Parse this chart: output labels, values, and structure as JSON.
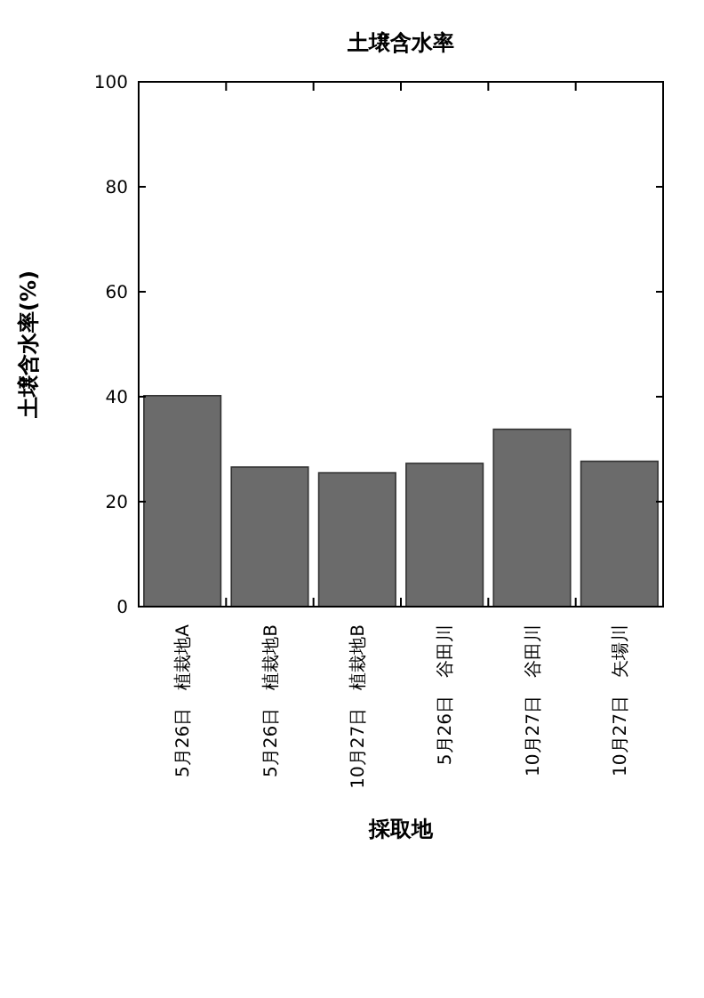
{
  "chart_data": {
    "type": "bar",
    "title": "土壌含水率",
    "xlabel": "採取地",
    "ylabel": "土壌含水率(%)",
    "categories": [
      "5月26日　植栽地A",
      "5月26日　植栽地B",
      "10月27日　植栽地B",
      "5月26日　谷田川",
      "10月27日　谷田川",
      "10月27日　矢場川"
    ],
    "values": [
      40.2,
      26.6,
      25.5,
      27.3,
      33.8,
      27.7
    ],
    "color": "#6b6b6b",
    "ylim": [
      0,
      100
    ],
    "yticks": [
      0,
      20,
      40,
      60,
      80,
      100
    ],
    "grid": false
  }
}
